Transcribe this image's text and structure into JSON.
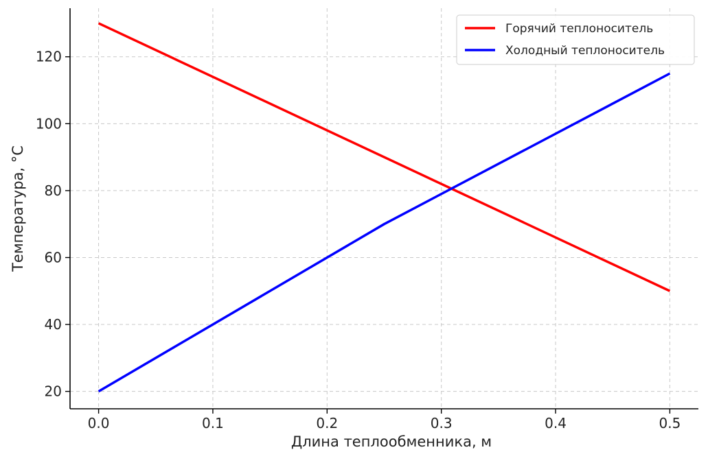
{
  "chart_data": {
    "type": "line",
    "title": "",
    "xlabel": "Длина теплообменника, м",
    "ylabel": "Температура, °C",
    "xlim": [
      -0.025,
      0.525
    ],
    "ylim": [
      14.8,
      134.5
    ],
    "xticks": [
      0.0,
      0.1,
      0.2,
      0.3,
      0.4,
      0.5
    ],
    "xtick_labels": [
      "0.0",
      "0.1",
      "0.2",
      "0.3",
      "0.4",
      "0.5"
    ],
    "yticks": [
      20,
      40,
      60,
      80,
      100,
      120
    ],
    "ytick_labels": [
      "20",
      "40",
      "60",
      "80",
      "100",
      "120"
    ],
    "grid": true,
    "legend_position": "top-right",
    "series": [
      {
        "name": "Горячий теплоноситель",
        "color": "#ff0000",
        "x": [
          0.0,
          0.5
        ],
        "y": [
          130,
          50
        ]
      },
      {
        "name": "Холодный теплоноситель",
        "color": "#0000ff",
        "x": [
          0.0,
          0.25,
          0.5
        ],
        "y": [
          20,
          70,
          115
        ]
      }
    ]
  }
}
